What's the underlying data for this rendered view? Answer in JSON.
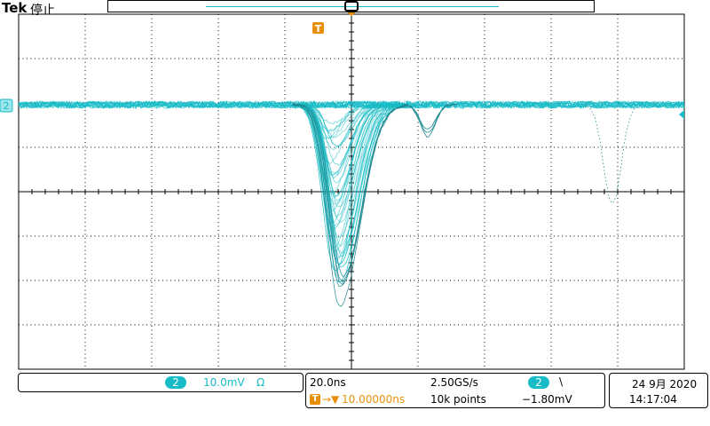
{
  "header": {
    "brand": "Tek",
    "status": "停止"
  },
  "markers": {
    "trigger_symbol": "T",
    "channel_marker": "2"
  },
  "channel": {
    "number": "2",
    "scale": "10.0mV",
    "coupling_symbol": "Ω"
  },
  "horizontal": {
    "time_per_div": "20.0ns",
    "sample_rate": "2.50GS/s",
    "record_length": "10k points",
    "trigger_position": "10.00000ns"
  },
  "trigger": {
    "source": "2",
    "slope_symbol": "\\",
    "level": "−1.80mV"
  },
  "datetime": {
    "date": "24 9月 2020",
    "time": "14:17:04"
  },
  "colors": {
    "trace": "#17bcc7",
    "trigger": "#e8900a",
    "grid": "#000000"
  }
}
